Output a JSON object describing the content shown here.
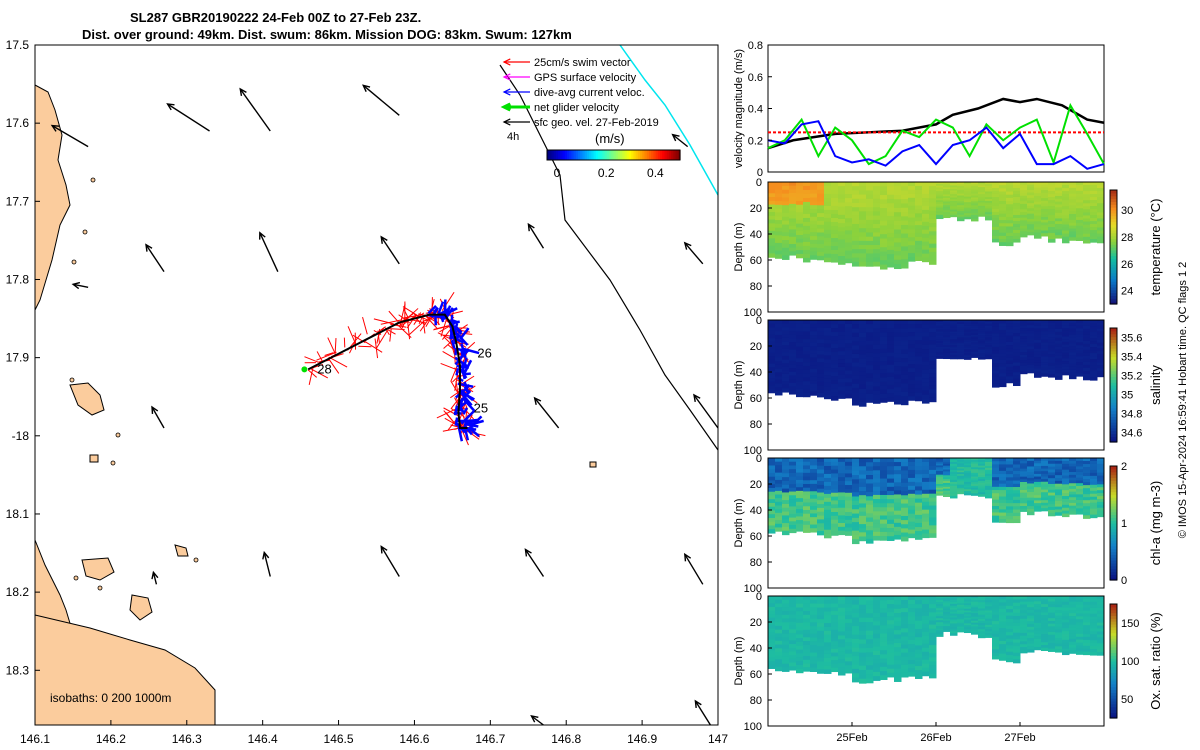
{
  "title": {
    "line1": "SL287 GBR20190222 24-Feb 00Z to 27-Feb 23Z.",
    "line2": "Dist. over ground: 49km. Dist. swum: 86km. Mission DOG: 83km. Swum: 127km"
  },
  "colors": {
    "land": "#fbcc9d",
    "swim": "#ff0000",
    "dive_avg": "#0000ff",
    "net": "#00e000",
    "gps": "#ff00ff",
    "sfc_geo": "#000000",
    "boundary": "#00e5ee"
  },
  "chart_data": [
    {
      "type": "scatter",
      "name": "map",
      "title": "SL287 GBR20190222 24-Feb 00Z to 27-Feb 23Z.",
      "xlim": [
        146.1,
        147.0
      ],
      "ylim": [
        -18.37,
        -17.5
      ],
      "xticks": [
        146.1,
        146.2,
        146.3,
        146.4,
        146.5,
        146.6,
        146.7,
        146.8,
        146.9,
        147
      ],
      "xtick_labels": [
        "146.1",
        "146.2",
        "146.3",
        "146.4",
        "146.5",
        "146.6",
        "146.7",
        "146.8",
        "146.9",
        "147"
      ],
      "yticks": [
        -17.5,
        -17.6,
        -17.7,
        -17.8,
        -17.9,
        -18.0,
        -18.1,
        -18.2,
        -18.3
      ],
      "ytick_labels": [
        "17.5",
        "17.6",
        "17.7",
        "17.8",
        "17.9",
        "-18",
        "18.1",
        "18.2",
        "18.3"
      ],
      "legend": [
        {
          "label": "25cm/s swim vector",
          "color": "#ff0000"
        },
        {
          "label": "GPS surface velocity",
          "color": "#ff00ff"
        },
        {
          "label": "dive-avg current veloc.",
          "color": "#0000ff"
        },
        {
          "label": "net glider velocity",
          "color": "#00e000"
        },
        {
          "label": "sfc geo. vel. 27-Feb-2019",
          "color": "#000000"
        }
      ],
      "legend_position": "top-right",
      "colorbar": {
        "label": "(m/s)",
        "tick_labels": [
          "0",
          "0.2",
          "0.4"
        ],
        "range": [
          0,
          0.5
        ]
      },
      "time_label": "4h",
      "isobath_note": "isobaths: 0   200  1000m",
      "track": [
        [
          146.46,
          -17.915
        ],
        [
          146.5,
          -17.895
        ],
        [
          146.55,
          -17.87
        ],
        [
          146.58,
          -17.855
        ],
        [
          146.6,
          -17.85
        ],
        [
          146.62,
          -17.845
        ],
        [
          146.64,
          -17.845
        ],
        [
          146.65,
          -17.86
        ],
        [
          146.655,
          -17.88
        ],
        [
          146.66,
          -17.91
        ],
        [
          146.66,
          -17.94
        ],
        [
          146.658,
          -17.97
        ],
        [
          146.66,
          -17.99
        ],
        [
          146.67,
          -17.99
        ]
      ],
      "day_labels": [
        {
          "text": "25",
          "lon": 146.678,
          "lat": -17.965
        },
        {
          "text": "26",
          "lon": 146.683,
          "lat": -17.895
        },
        {
          "text": "28",
          "lon": 146.472,
          "lat": -17.915
        }
      ],
      "geo_vectors": [
        {
          "lon": 146.17,
          "lat": -17.63,
          "u": -0.06,
          "v": 0.035
        },
        {
          "lon": 146.33,
          "lat": -17.61,
          "u": -0.07,
          "v": 0.045
        },
        {
          "lon": 146.41,
          "lat": -17.61,
          "u": -0.05,
          "v": 0.07
        },
        {
          "lon": 146.58,
          "lat": -17.59,
          "u": -0.06,
          "v": 0.05
        },
        {
          "lon": 146.96,
          "lat": -17.63,
          "u": -0.025,
          "v": 0.02
        },
        {
          "lon": 146.17,
          "lat": -17.81,
          "u": -0.025,
          "v": 0.005
        },
        {
          "lon": 146.27,
          "lat": -17.79,
          "u": -0.03,
          "v": 0.045
        },
        {
          "lon": 146.42,
          "lat": -17.79,
          "u": -0.03,
          "v": 0.065
        },
        {
          "lon": 146.58,
          "lat": -17.78,
          "u": -0.03,
          "v": 0.045
        },
        {
          "lon": 146.77,
          "lat": -17.76,
          "u": -0.025,
          "v": 0.04
        },
        {
          "lon": 146.98,
          "lat": -17.78,
          "u": -0.03,
          "v": 0.035
        },
        {
          "lon": 146.27,
          "lat": -17.99,
          "u": -0.02,
          "v": 0.035
        },
        {
          "lon": 146.79,
          "lat": -17.99,
          "u": -0.04,
          "v": 0.05
        },
        {
          "lon": 147.0,
          "lat": -17.99,
          "u": -0.04,
          "v": 0.055
        },
        {
          "lon": 146.26,
          "lat": -18.19,
          "u": -0.005,
          "v": 0.02
        },
        {
          "lon": 146.41,
          "lat": -18.18,
          "u": -0.01,
          "v": 0.04
        },
        {
          "lon": 146.58,
          "lat": -18.18,
          "u": -0.03,
          "v": 0.05
        },
        {
          "lon": 146.77,
          "lat": -18.18,
          "u": -0.03,
          "v": 0.045
        },
        {
          "lon": 146.98,
          "lat": -18.19,
          "u": -0.03,
          "v": 0.05
        },
        {
          "lon": 146.77,
          "lat": -18.37,
          "u": -0.02,
          "v": 0.015
        },
        {
          "lon": 146.99,
          "lat": -18.37,
          "u": -0.025,
          "v": 0.04
        }
      ]
    },
    {
      "type": "line",
      "name": "velocity",
      "ylabel": "velocity magnitude (m/s)",
      "xlim": [
        24.0,
        28.0
      ],
      "ylim": [
        0,
        0.8
      ],
      "yticks": [
        0,
        0.2,
        0.4,
        0.6,
        0.8
      ],
      "ytick_labels": [
        "0",
        "0.2",
        "0.4",
        "0.6",
        "0.8"
      ],
      "series": [
        {
          "name": "sfc geo",
          "color": "#000000",
          "x": [
            24.0,
            24.3,
            24.8,
            25.2,
            25.6,
            26.0,
            26.2,
            26.5,
            26.8,
            27.0,
            27.2,
            27.5,
            27.8,
            28.0
          ],
          "y": [
            0.15,
            0.2,
            0.24,
            0.25,
            0.26,
            0.3,
            0.36,
            0.4,
            0.46,
            0.44,
            0.46,
            0.42,
            0.33,
            0.31
          ]
        },
        {
          "name": "swim speed",
          "color": "#ff0000",
          "style": "dashed",
          "x": [
            24.0,
            28.0
          ],
          "y": [
            0.25,
            0.25
          ]
        },
        {
          "name": "net glider",
          "color": "#00e000",
          "x": [
            24.0,
            24.2,
            24.4,
            24.6,
            24.8,
            25.0,
            25.2,
            25.4,
            25.6,
            25.8,
            26.0,
            26.2,
            26.4,
            26.6,
            26.8,
            27.0,
            27.2,
            27.4,
            27.6,
            27.8,
            28.0
          ],
          "y": [
            0.15,
            0.2,
            0.33,
            0.1,
            0.28,
            0.2,
            0.05,
            0.1,
            0.26,
            0.22,
            0.33,
            0.28,
            0.1,
            0.3,
            0.2,
            0.28,
            0.33,
            0.06,
            0.42,
            0.24,
            0.05
          ]
        },
        {
          "name": "dive avg",
          "color": "#0000ff",
          "x": [
            24.0,
            24.2,
            24.4,
            24.6,
            24.8,
            25.0,
            25.2,
            25.4,
            25.6,
            25.8,
            26.0,
            26.2,
            26.4,
            26.6,
            26.8,
            27.0,
            27.2,
            27.4,
            27.6,
            27.8,
            28.0
          ],
          "y": [
            0.2,
            0.18,
            0.3,
            0.32,
            0.1,
            0.06,
            0.08,
            0.04,
            0.13,
            0.17,
            0.05,
            0.17,
            0.2,
            0.28,
            0.15,
            0.24,
            0.05,
            0.05,
            0.1,
            0.02,
            0.05
          ]
        }
      ]
    },
    {
      "type": "heatmap",
      "name": "temperature",
      "ylabel": "Depth (m)",
      "ylim": [
        100,
        0
      ],
      "yticks": [
        0,
        20,
        40,
        60,
        80,
        100
      ],
      "colorbar_label": "temperature (°C)",
      "colorbar_ticks": [
        "24",
        "26",
        "28",
        "30"
      ],
      "crange": [
        23,
        31.5
      ],
      "typical_value": 28.7,
      "max_depth": [
        58,
        60,
        63,
        66,
        65,
        62,
        28,
        28,
        48,
        42,
        45,
        45
      ]
    },
    {
      "type": "heatmap",
      "name": "salinity",
      "ylabel": "Depth (m)",
      "ylim": [
        100,
        0
      ],
      "yticks": [
        0,
        20,
        40,
        60,
        80,
        100
      ],
      "colorbar_label": "salinity",
      "colorbar_ticks": [
        "34.6",
        "34.8",
        "35",
        "35.2",
        "35.4",
        "35.6"
      ],
      "crange": [
        34.5,
        35.7
      ],
      "typical_value": 34.5,
      "max_depth": [
        57,
        58,
        60,
        65,
        64,
        62,
        29,
        30,
        50,
        42,
        44,
        45
      ]
    },
    {
      "type": "heatmap",
      "name": "chlorophyll",
      "ylabel": "Depth (m)",
      "ylim": [
        100,
        0
      ],
      "yticks": [
        0,
        20,
        40,
        60,
        80,
        100
      ],
      "colorbar_label": "chl-a (mg m-3)",
      "colorbar_ticks": [
        "0",
        "1",
        "2"
      ],
      "crange": [
        0,
        2
      ],
      "surface_value": 0.4,
      "deep_value": 1.25,
      "max_depth": [
        57,
        58,
        60,
        65,
        64,
        62,
        29,
        30,
        50,
        42,
        44,
        45
      ]
    },
    {
      "type": "heatmap",
      "name": "oxygen",
      "ylabel": "Depth (m)",
      "ylim": [
        100,
        0
      ],
      "yticks": [
        0,
        20,
        40,
        60,
        80,
        100
      ],
      "colorbar_label": "Ox. sat. ratio (%)",
      "colorbar_ticks": [
        "50",
        "100",
        "150"
      ],
      "crange": [
        25,
        175
      ],
      "typical_value": 100,
      "max_depth": [
        57,
        58,
        60,
        65,
        64,
        62,
        29,
        30,
        50,
        42,
        44,
        45
      ],
      "xtick_labels": [
        "25Feb",
        "26Feb",
        "27Feb"
      ],
      "xticks": [
        25,
        26,
        27
      ]
    }
  ],
  "footer": {
    "credit": "© IMOS 15-Apr-2024 16:59:41 Hobart time. QC flags 1  2"
  }
}
